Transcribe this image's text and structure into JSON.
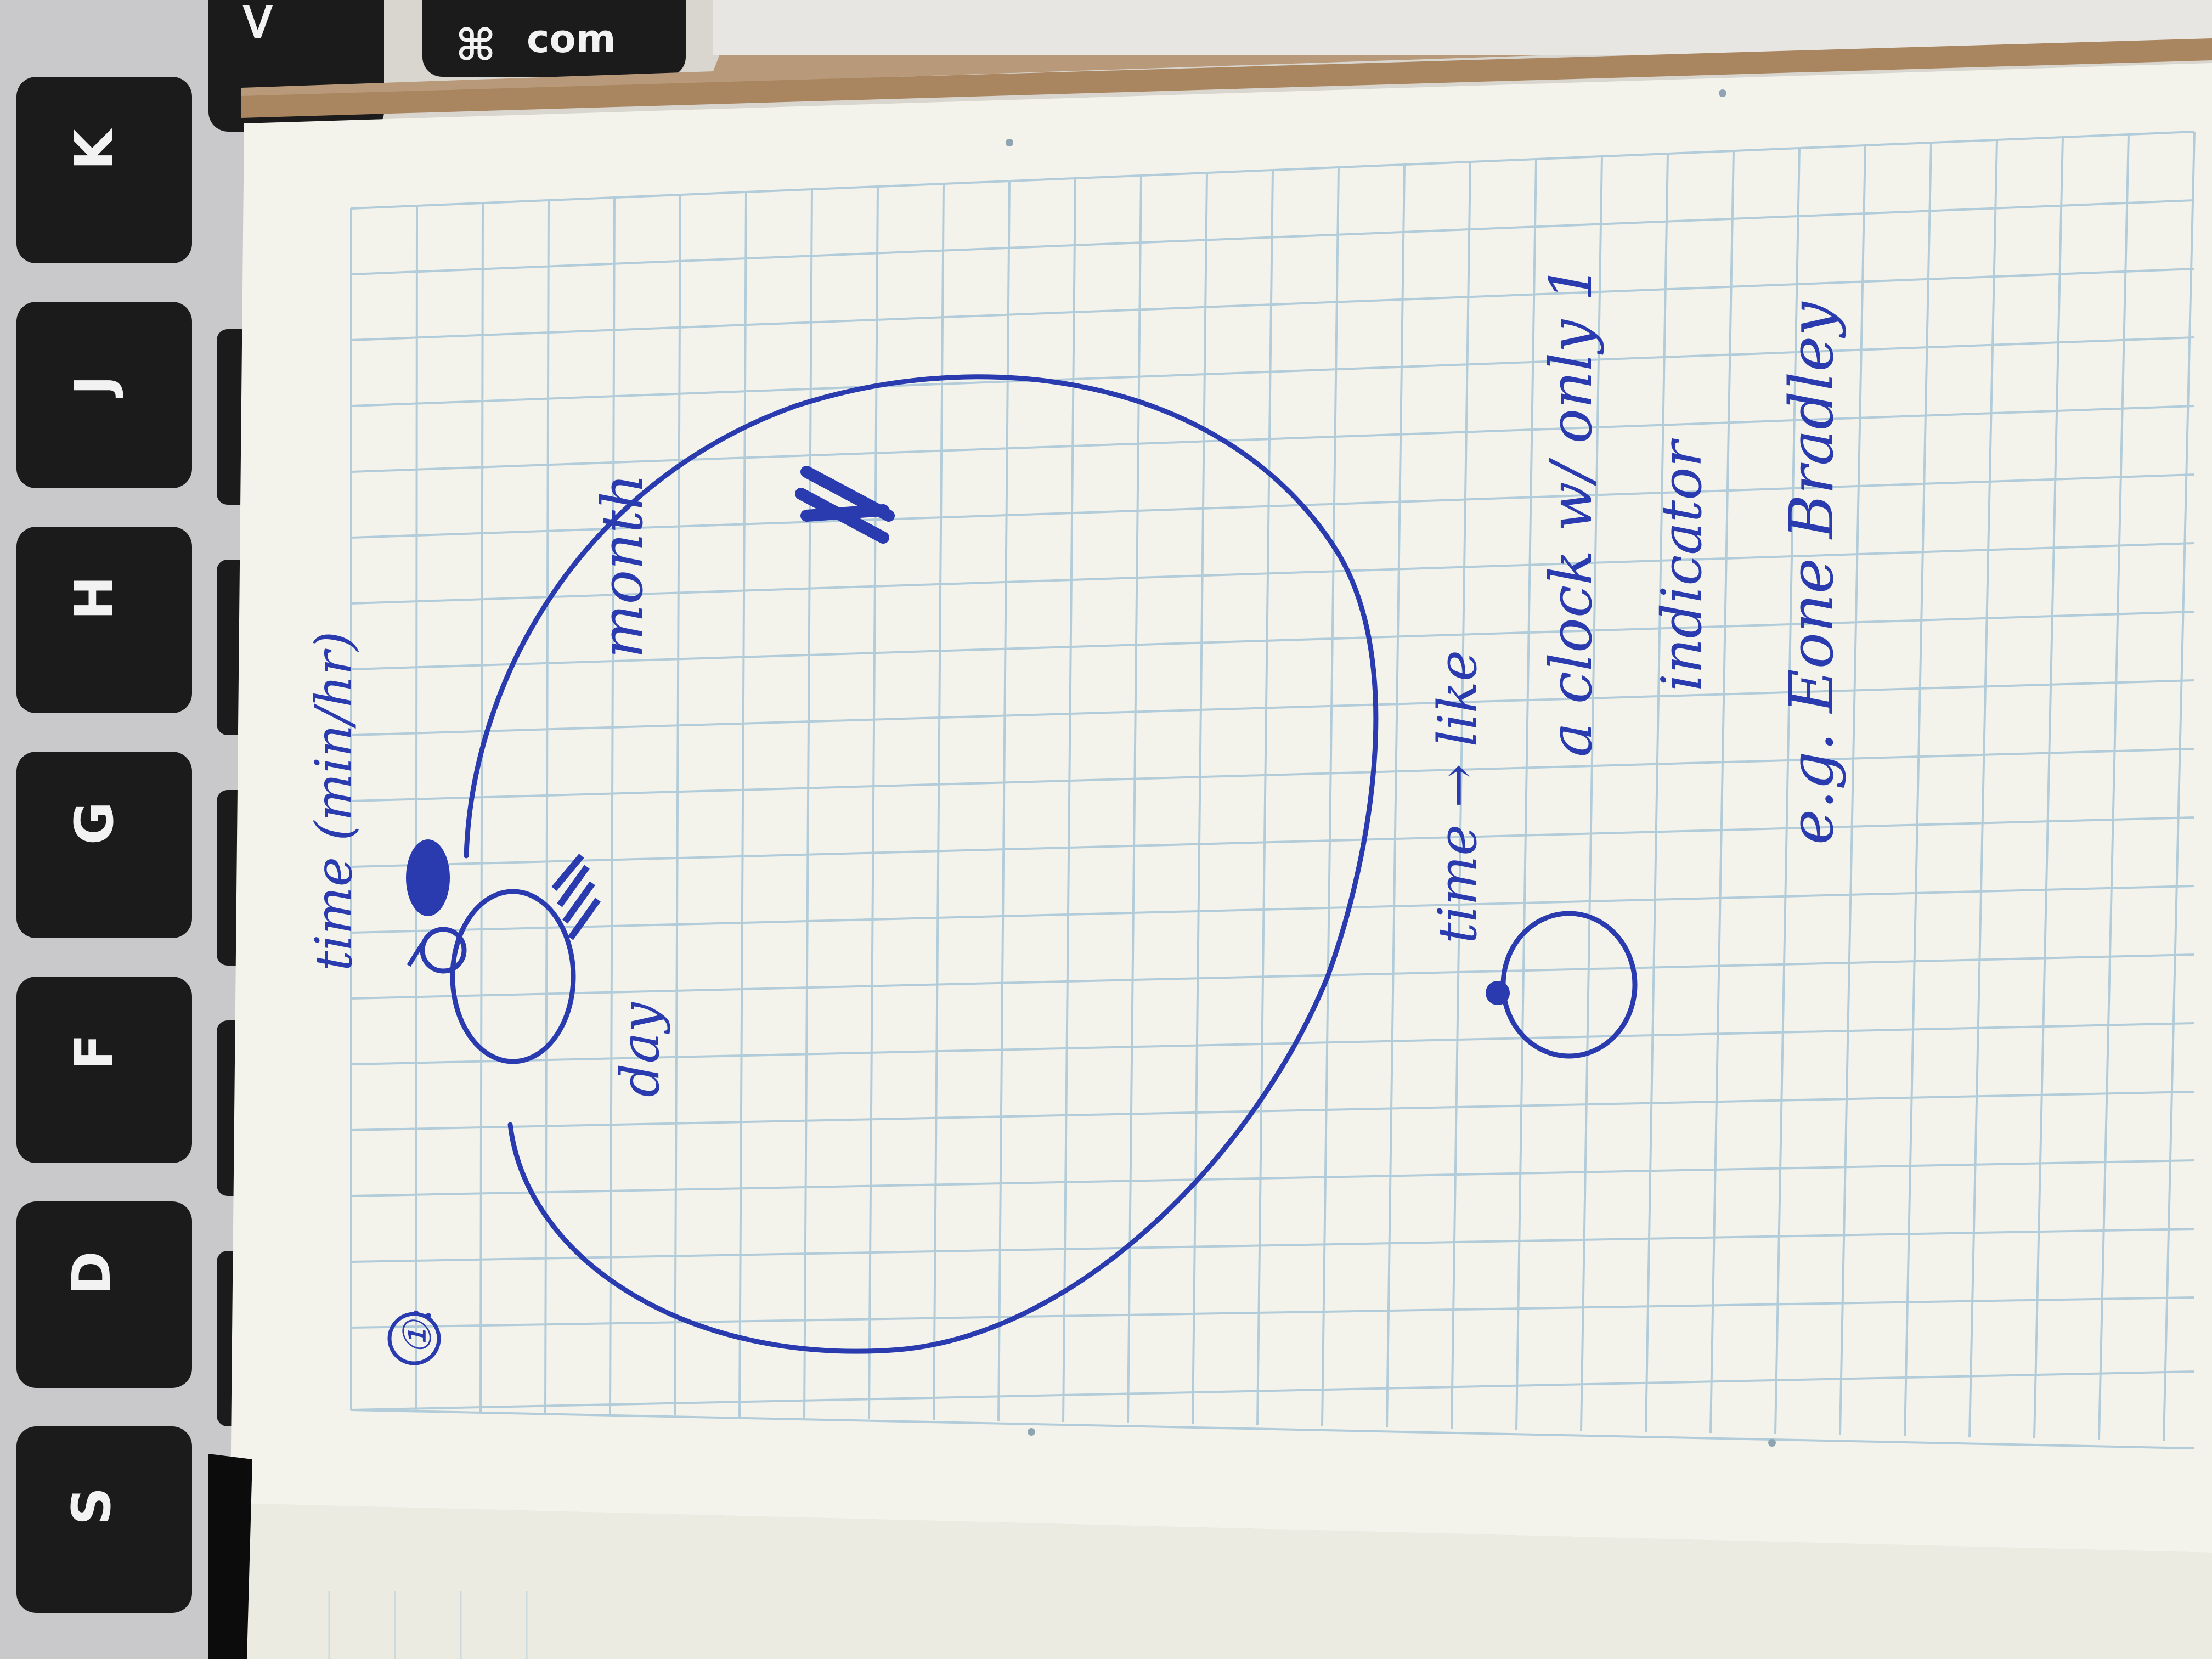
{
  "photo": {
    "keyboard_keys": [
      "S",
      "D",
      "F",
      "G",
      "H",
      "J",
      "K",
      "<",
      "⌘",
      "com"
    ],
    "notebook_sketch": {
      "number_label": "①:",
      "labels": {
        "time_note": "time (min/hr)",
        "day": "day",
        "month": "month",
        "time_like": "time → like",
        "clock_line": "a clock w/ only 1",
        "indicator": "indicator",
        "example": "e.g. Eone Bradley"
      }
    },
    "colors": {
      "ink": "#2a3bb0",
      "paper": "#f3f3ec",
      "grid": "#a9c6d6",
      "keycap": "#1b1b1c",
      "desk": "#d9d6d0",
      "notebook_cover": "#b89a7a"
    }
  }
}
